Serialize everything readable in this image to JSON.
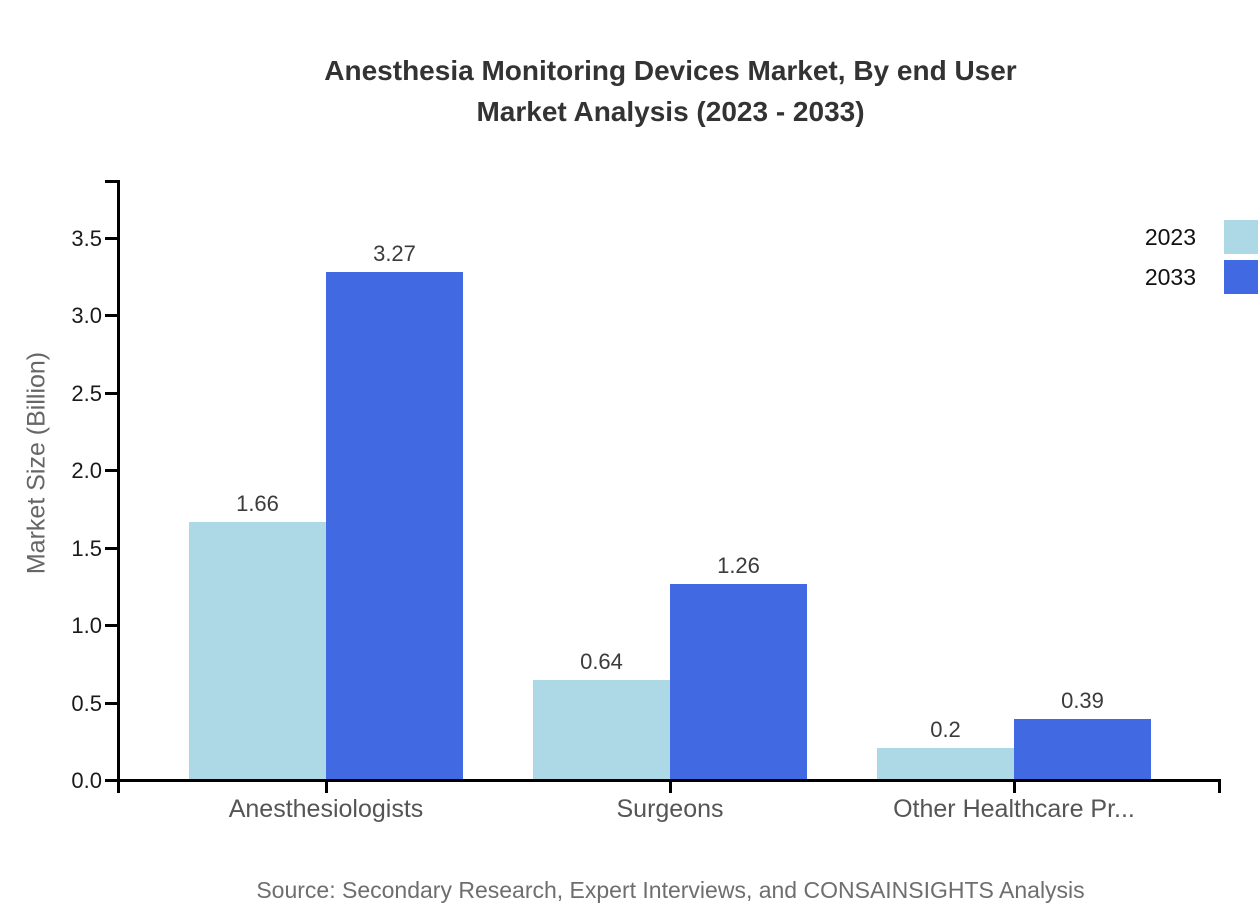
{
  "title": {
    "line1": "Anesthesia Monitoring Devices Market, By end User",
    "line2": "Market Analysis (2023 - 2033)"
  },
  "source": "Source: Secondary Research, Expert Interviews, and CONSAINSIGHTS Analysis",
  "chart_data": {
    "type": "bar",
    "title": "Anesthesia Monitoring Devices Market, By end User Market Analysis (2023 - 2033)",
    "categories": [
      "Anesthesiologists",
      "Surgeons",
      "Other Healthcare Pr..."
    ],
    "series": [
      {
        "name": "2023",
        "color": "#ADD8E6",
        "values": [
          1.66,
          0.64,
          0.2
        ]
      },
      {
        "name": "2033",
        "color": "#4169E1",
        "values": [
          3.27,
          1.26,
          0.39
        ]
      }
    ],
    "xlabel": "",
    "ylabel": "Market Size (Billion)",
    "yticks": [
      0.0,
      0.5,
      1.0,
      1.5,
      2.0,
      2.5,
      3.0,
      3.5
    ],
    "ytick_labels": [
      "0.0",
      "0.5",
      "1.0",
      "1.5",
      "2.0",
      "2.5",
      "3.0",
      "3.5"
    ],
    "ylim": [
      0,
      3.9
    ],
    "grid": false,
    "legend_position": "top-right",
    "colors": {
      "axis": "#000000",
      "title_text": "#333333",
      "tick_text": "#1a1a1a",
      "category_text": "#555555",
      "value_text": "#3b3b3b",
      "source_text": "#6e6e6e"
    }
  }
}
